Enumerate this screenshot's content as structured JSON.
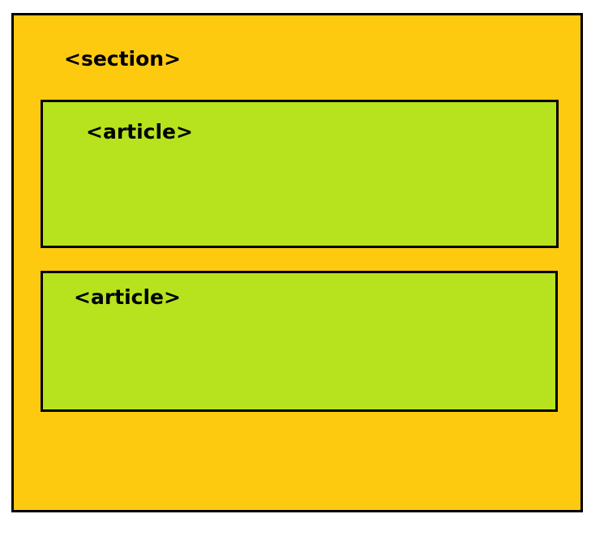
{
  "diagram": {
    "section": {
      "label": "<section>",
      "fill_color": "#FECA10",
      "border_color": "#000000"
    },
    "articles": [
      {
        "label": "<article>",
        "fill_color": "#B6E31E",
        "border_color": "#000000"
      },
      {
        "label": "<article>",
        "fill_color": "#B6E31E",
        "border_color": "#000000"
      }
    ]
  }
}
